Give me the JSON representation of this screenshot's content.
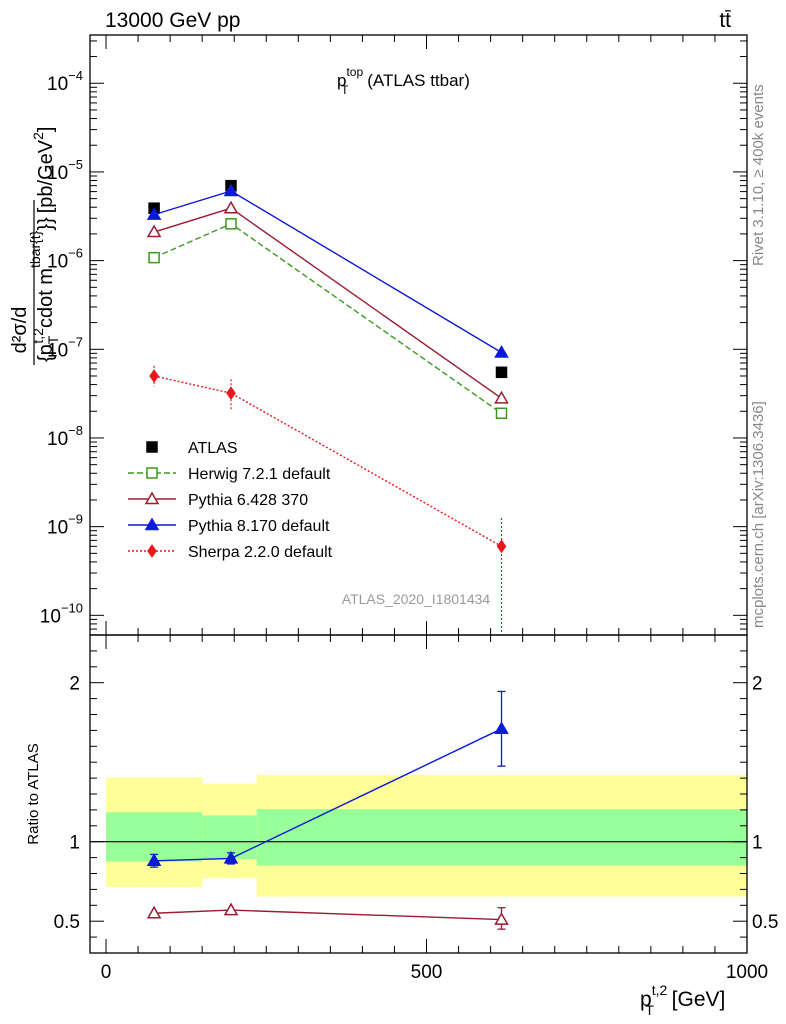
{
  "header": {
    "left": "13000 GeV pp",
    "right": "tt̄"
  },
  "side_labels": {
    "rivet": "Rivet 3.1.10, ≥ 400k events",
    "mcplots": "mcplots.cern.ch [arXiv:1306.3436]"
  },
  "watermark": "ATLAS_2020_I1801434",
  "chart_data": [
    {
      "type": "scatter",
      "panel": "main",
      "title": {
        "base": "p",
        "sup": "top",
        "sub": "T",
        "suffix": " (ATLAS ttbar)"
      },
      "ylabel": "d²σ/d{p_T^{t,2} cdot m^{tbar{t}}} [pb/GeV²]",
      "ylabel_parts": {
        "top": "d²σ/d",
        "pre": "{p",
        "sub": "T",
        "sup": "t,2",
        "mid": "cdot m",
        "sup2": "tbar{t}",
        "post": "}}",
        "unit": "[pb/GeV",
        "unit_sup": "2",
        "unit_end": "]"
      },
      "yscale": "log",
      "ylim": [
        6e-11,
        0.00035
      ],
      "xlim": [
        -25,
        1000
      ],
      "yticks": [
        {
          "value": 1e-10,
          "base": "10",
          "exp": "−10"
        },
        {
          "value": 1e-09,
          "base": "10",
          "exp": "−9"
        },
        {
          "value": 1e-08,
          "base": "10",
          "exp": "−8"
        },
        {
          "value": 1e-07,
          "base": "10",
          "exp": "−7"
        },
        {
          "value": 1e-06,
          "base": "10",
          "exp": "−6"
        },
        {
          "value": 1e-05,
          "base": "10",
          "exp": "−5"
        },
        {
          "value": 0.0001,
          "base": "10",
          "exp": "−4"
        }
      ],
      "legend_position": "lower-left",
      "series": [
        {
          "name": "ATLAS",
          "marker": "square-filled",
          "color": "#000000",
          "line": "none",
          "x": [
            75,
            195,
            617
          ],
          "y": [
            3.9e-06,
            7e-06,
            5.5e-08
          ],
          "err_lo": [
            0,
            0,
            0
          ],
          "err_hi": [
            0,
            0,
            0
          ]
        },
        {
          "name": "Herwig 7.2.1 default",
          "marker": "square-open",
          "color": "#3a9a1f",
          "line": "dashed",
          "x": [
            75,
            195,
            617
          ],
          "y": [
            1.08e-06,
            2.6e-06,
            1.9e-08
          ],
          "err_lo": [
            0,
            0,
            0
          ],
          "err_hi": [
            0,
            0,
            0
          ]
        },
        {
          "name": "Pythia 6.428 370",
          "marker": "triangle-open",
          "color": "#9b1b30",
          "line": "solid",
          "x": [
            75,
            195,
            617
          ],
          "y": [
            2.1e-06,
            3.9e-06,
            2.8e-08
          ],
          "err_lo": [
            0,
            0,
            0
          ],
          "err_hi": [
            0,
            0,
            0
          ]
        },
        {
          "name": "Pythia 8.170 default",
          "marker": "triangle-filled",
          "color": "#0a1ad6",
          "line": "solid",
          "x": [
            75,
            195,
            617
          ],
          "y": [
            3.3e-06,
            6.1e-06,
            9.2e-08
          ],
          "err_lo": [
            0,
            0,
            0
          ],
          "err_hi": [
            0,
            0,
            0
          ]
        },
        {
          "name": "Sherpa 2.2.0 default",
          "marker": "diamond-filled",
          "color": "#e8171b",
          "line": "dotted",
          "x": [
            75,
            195,
            617
          ],
          "y": [
            5e-08,
            3.2e-08,
            6e-10
          ],
          "err_lo": [
            1.2e-08,
            1.2e-08,
            5.8e-10
          ],
          "err_hi": [
            1.5e-08,
            1.4e-08,
            6.5e-10
          ]
        }
      ]
    },
    {
      "type": "scatter",
      "panel": "ratio",
      "ylabel": "Ratio to ATLAS",
      "xlabel": "p_T^{t,2} [GeV]",
      "xlabel_parts": {
        "base": "p",
        "sup": "t,2",
        "sub": "T",
        "unit": " [GeV]"
      },
      "ylim": [
        0.3,
        2.3
      ],
      "xlim": [
        -25,
        1000
      ],
      "yticks": [
        0.5,
        1,
        2
      ],
      "ytick_labels": [
        "0.5",
        "1",
        "2"
      ],
      "xticks": [
        0,
        500,
        1000
      ],
      "xtick_labels": [
        "0",
        "500",
        "1000"
      ],
      "bands": [
        {
          "x_lo": 0,
          "x_hi": 150,
          "outer": [
            0.715,
            1.405
          ],
          "inner": [
            0.875,
            1.185
          ]
        },
        {
          "x_lo": 150,
          "x_hi": 235,
          "outer": [
            0.77,
            1.365
          ],
          "inner": [
            0.89,
            1.165
          ]
        },
        {
          "x_lo": 235,
          "x_hi": 1000,
          "outer": [
            0.655,
            1.42
          ],
          "inner": [
            0.85,
            1.205
          ]
        }
      ],
      "band_colors": {
        "outer": "#ffff99",
        "inner": "#99ff99"
      },
      "series": [
        {
          "name": "Pythia 8.170 default",
          "marker": "triangle-filled",
          "color": "#0a1ad6",
          "x": [
            75,
            195,
            617
          ],
          "y": [
            0.88,
            0.895,
            1.71
          ],
          "err_lo": [
            0.04,
            0.035,
            0.235
          ],
          "err_hi": [
            0.04,
            0.035,
            0.235
          ]
        },
        {
          "name": "Pythia 6.428 370",
          "marker": "triangle-open",
          "color": "#9b1b30",
          "x": [
            75,
            195,
            617
          ],
          "y": [
            0.55,
            0.57,
            0.51
          ],
          "err_lo": [
            0,
            0,
            0.06
          ],
          "err_hi": [
            0,
            0,
            0.075
          ]
        }
      ]
    }
  ]
}
